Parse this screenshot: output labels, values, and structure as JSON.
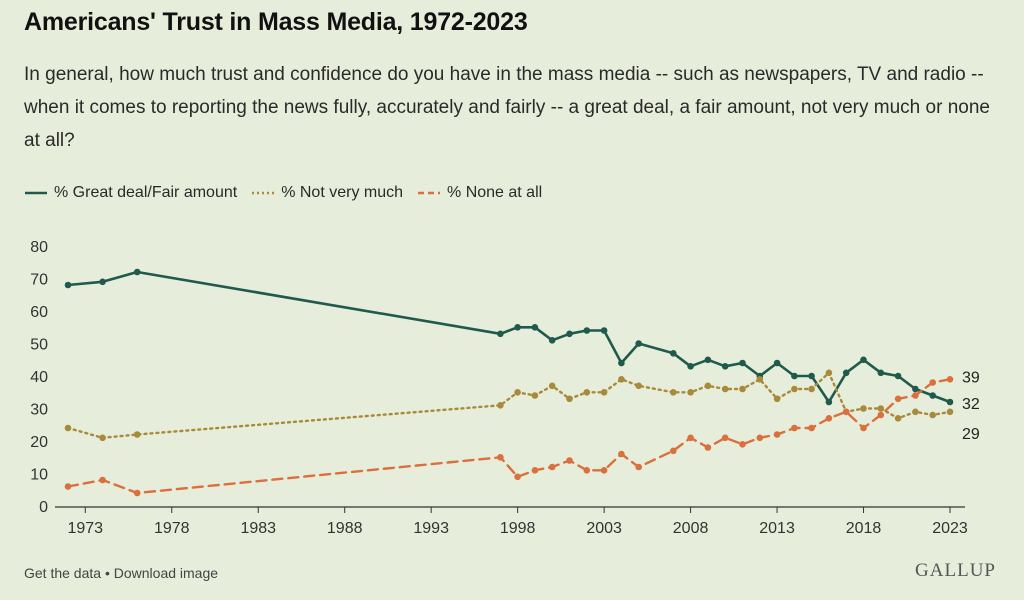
{
  "title": "Americans' Trust in Mass Media, 1972-2023",
  "subtitle": "In general, how much trust and confidence do you have in the mass media -- such as newspapers, TV and radio -- when it comes to reporting the news fully, accurately and fairly -- a great deal, a fair amount, not very much or none at all?",
  "footer": {
    "get_data": "Get the data",
    "separator": "•",
    "download": "Download image"
  },
  "brand": "GALLUP",
  "colors": {
    "background": "#e6eedb",
    "great": "#1f5a4c",
    "notmuch": "#a88a3a",
    "none": "#d9703d",
    "grid": "#cfd8c3"
  },
  "chart_data": {
    "type": "line",
    "title": "Americans' Trust in Mass Media, 1972-2023",
    "xlim": [
      1972,
      2023
    ],
    "ylim": [
      0,
      80
    ],
    "x_ticks": [
      "1973",
      "1978",
      "1983",
      "1988",
      "1993",
      "1998",
      "2003",
      "2008",
      "2013",
      "2018",
      "2023"
    ],
    "y_ticks": [
      "0",
      "10",
      "20",
      "30",
      "40",
      "50",
      "60",
      "70",
      "80"
    ],
    "grid": false,
    "legend_position": "top-left",
    "x": [
      1972,
      1974,
      1976,
      1997,
      1998,
      1999,
      2000,
      2001,
      2002,
      2003,
      2004,
      2005,
      2007,
      2008,
      2009,
      2010,
      2011,
      2012,
      2013,
      2014,
      2015,
      2016,
      2017,
      2018,
      2019,
      2020,
      2021,
      2022,
      2023
    ],
    "series": [
      {
        "name": "% Great deal/Fair amount",
        "style": "solid",
        "color": "#1f5a4c",
        "values": [
          68,
          69,
          72,
          53,
          55,
          55,
          51,
          53,
          54,
          54,
          44,
          50,
          47,
          43,
          45,
          43,
          44,
          40,
          44,
          40,
          40,
          32,
          41,
          45,
          41,
          40,
          36,
          34,
          32
        ],
        "end_label": "32"
      },
      {
        "name": "% Not very much",
        "style": "dotted",
        "color": "#a88a3a",
        "values": [
          24,
          21,
          22,
          31,
          35,
          34,
          37,
          33,
          35,
          35,
          39,
          37,
          35,
          35,
          37,
          36,
          36,
          39,
          33,
          36,
          36,
          41,
          29,
          30,
          30,
          27,
          29,
          28,
          29
        ],
        "end_label": "29"
      },
      {
        "name": "% None at all",
        "style": "dashed",
        "color": "#d9703d",
        "values": [
          6,
          8,
          4,
          15,
          9,
          11,
          12,
          14,
          11,
          11,
          16,
          12,
          17,
          21,
          18,
          21,
          19,
          21,
          22,
          24,
          24,
          27,
          29,
          24,
          28,
          33,
          34,
          38,
          39
        ],
        "end_label": "39"
      }
    ]
  }
}
